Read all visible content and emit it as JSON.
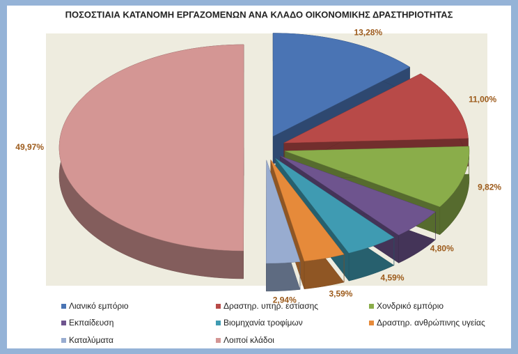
{
  "chart_data": {
    "type": "pie",
    "title": "ΠΟΣΟΣΤΙΑΙΑ ΚΑΤΑΝΟΜΗ ΕΡΓΑΖΟΜΕΝΩΝ ΑΝΑ ΚΛΑΔΟ ΟΙΚΟΝΟΜΙΚΗΣ ΔΡΑΣΤΗΡΙΟΤΗΤΑΣ",
    "categories": [
      "Λιανικό εμπόριο",
      "Δραστηρ. υπηρ. εστίασης",
      "Χονδρικό εμπόριο",
      "Εκπαίδευση",
      "Βιομηχανία τροφίμων",
      "Δραστηρ. ανθρώπινης υγείας",
      "Καταλύματα",
      "Λοιποί κλάδοι"
    ],
    "values": [
      13.28,
      11.0,
      9.82,
      4.8,
      4.59,
      3.59,
      2.94,
      49.97
    ],
    "value_labels": [
      "13,28%",
      "11,00%",
      "9,82%",
      "4,80%",
      "4,59%",
      "3,59%",
      "2,94%",
      "49,97%"
    ],
    "colors": [
      "#4a74b4",
      "#b84a48",
      "#8aad4a",
      "#6e548e",
      "#3f9bb2",
      "#e68a3a",
      "#98acd0",
      "#d49694"
    ],
    "legend": "bottom"
  }
}
